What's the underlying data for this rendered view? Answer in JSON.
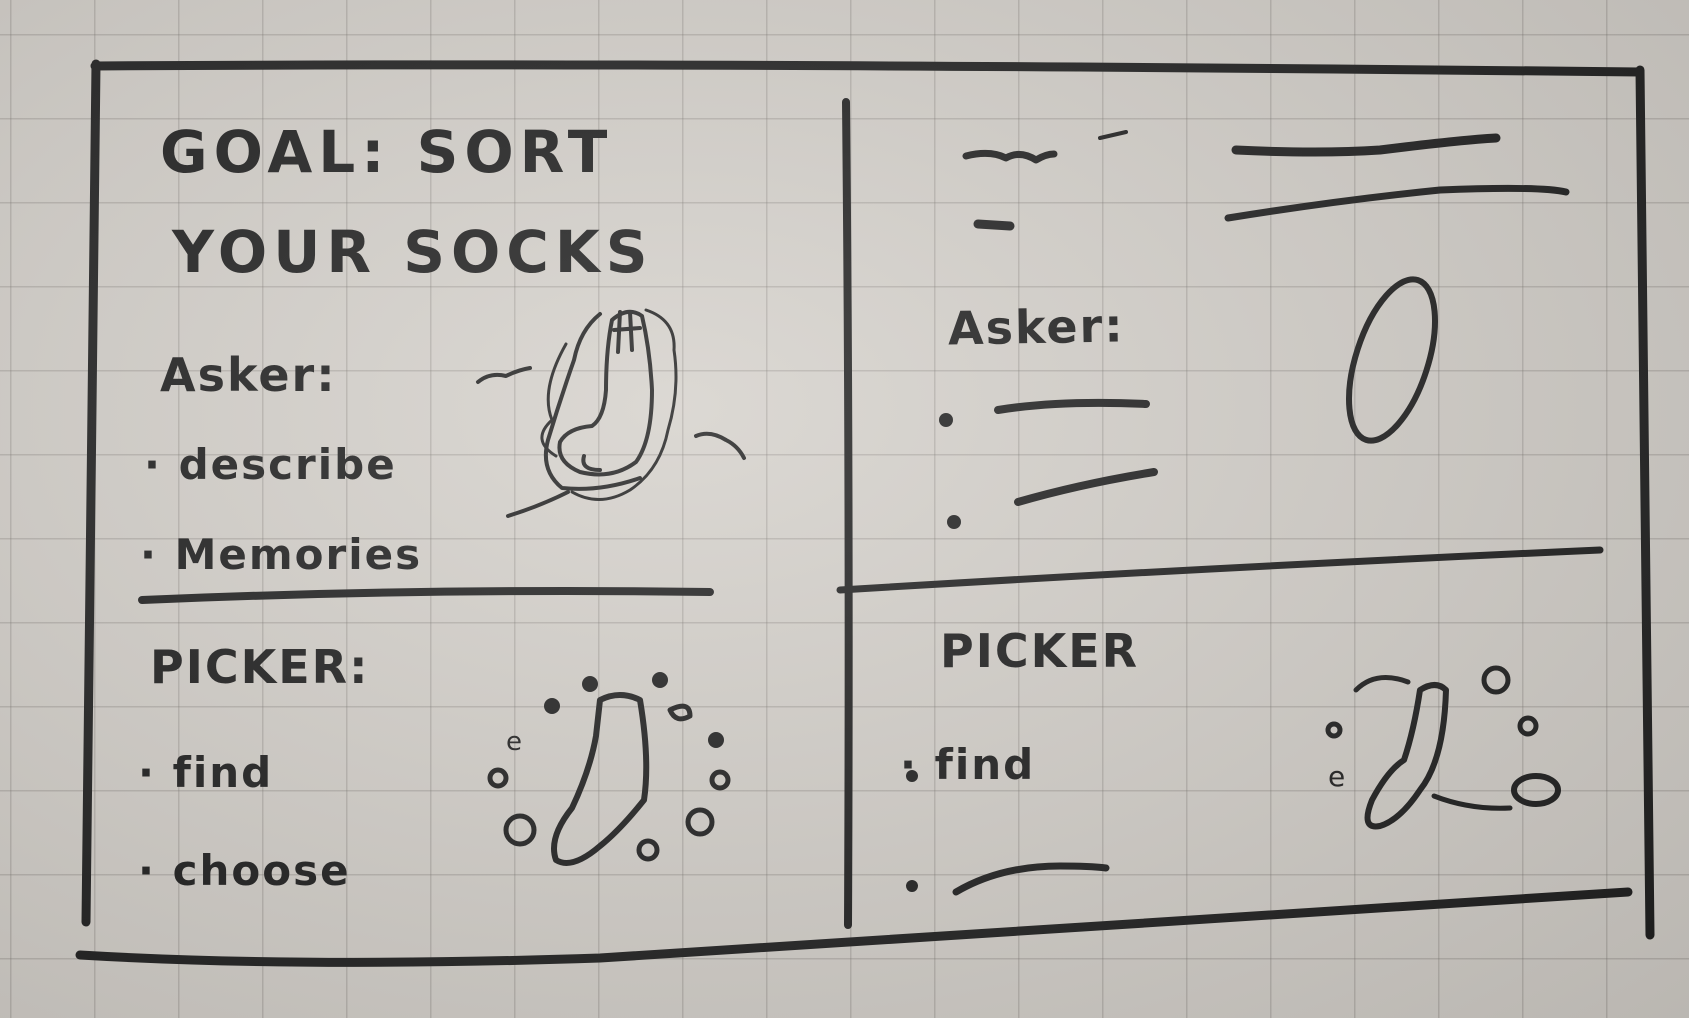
{
  "sketch": {
    "title_line1": "GOAL: SORT",
    "title_line2": "YOUR SOCKS",
    "left": {
      "asker_label": "Asker:",
      "asker_items": [
        "· describe",
        "· Memories"
      ],
      "picker_label": "PICKER:",
      "picker_items": [
        "· find",
        "· choose"
      ]
    },
    "right": {
      "asker_label": "Asker:",
      "picker_label": "PICKER",
      "picker_items": [
        "· find"
      ]
    },
    "ink_color": "#1e1e1e",
    "paper_color": "#d4d0ca"
  }
}
